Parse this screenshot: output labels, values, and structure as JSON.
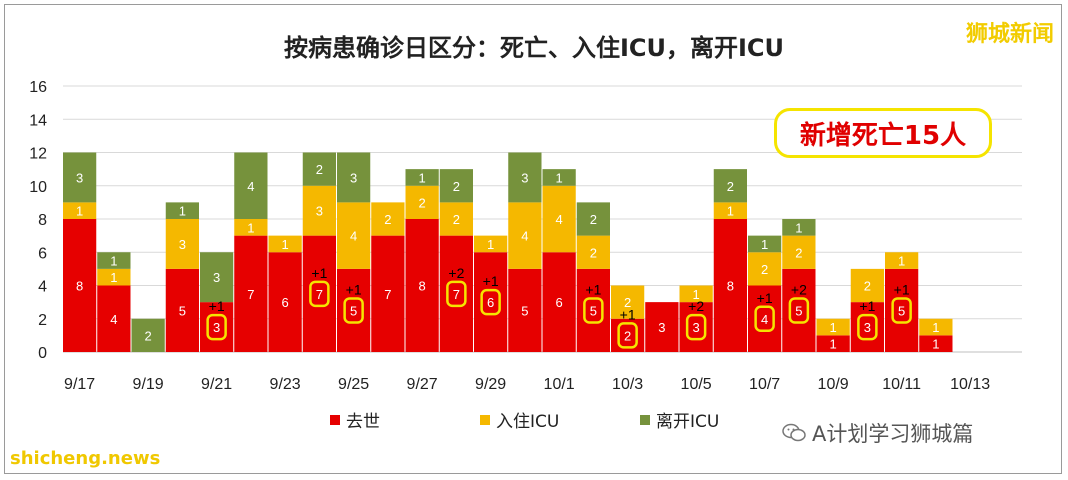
{
  "brand": "狮城新闻",
  "callout": "新增死亡15人",
  "source": "shicheng.news",
  "watermark": "A计划学习狮城篇",
  "colors": {
    "deaths": "#e60000",
    "icu_in": "#f5b800",
    "icu_out": "#76923c",
    "callout_border": "#f5e400"
  },
  "chart_data": {
    "type": "bar",
    "stacked": true,
    "title": "按病患确诊日区分：死亡、入住ICU，离开ICU",
    "categories": [
      "9/17",
      "9/18",
      "9/19",
      "9/20",
      "9/21",
      "9/22",
      "9/23",
      "9/24",
      "9/25",
      "9/26",
      "9/27",
      "9/28",
      "9/29",
      "9/30",
      "10/1",
      "10/2",
      "10/3",
      "10/4",
      "10/5",
      "10/6",
      "10/7",
      "10/8",
      "10/9",
      "10/10",
      "10/11",
      "10/12",
      "10/13"
    ],
    "tick_labels": [
      "9/17",
      "9/19",
      "9/21",
      "9/23",
      "9/25",
      "9/27",
      "9/29",
      "10/1",
      "10/3",
      "10/5",
      "10/7",
      "10/9",
      "10/11",
      "10/13"
    ],
    "ylim": [
      0,
      16
    ],
    "yticks": [
      0,
      2,
      4,
      6,
      8,
      10,
      12,
      14,
      16
    ],
    "grid": true,
    "legend_position": "bottom",
    "series": [
      {
        "name": "去世",
        "color": "#e60000",
        "values": [
          8,
          4,
          0,
          5,
          3,
          7,
          6,
          7,
          5,
          7,
          8,
          7,
          6,
          5,
          6,
          5,
          2,
          3,
          3,
          8,
          4,
          5,
          1,
          3,
          5,
          1,
          0
        ]
      },
      {
        "name": "入住ICU",
        "color": "#f5b800",
        "values": [
          1,
          1,
          0,
          3,
          0,
          1,
          1,
          3,
          4,
          2,
          2,
          2,
          1,
          4,
          4,
          2,
          2,
          0,
          1,
          1,
          2,
          2,
          1,
          2,
          1,
          1,
          0
        ]
      },
      {
        "name": "离开ICU",
        "color": "#76923c",
        "values": [
          3,
          1,
          2,
          1,
          3,
          4,
          0,
          2,
          3,
          0,
          1,
          2,
          0,
          3,
          1,
          2,
          0,
          0,
          0,
          2,
          1,
          1,
          0,
          0,
          0,
          0,
          0
        ]
      }
    ],
    "new_deaths": [
      null,
      null,
      null,
      null,
      "+1",
      null,
      null,
      "+1",
      "+1",
      null,
      null,
      "+2",
      "+1",
      null,
      null,
      "+1",
      "+1",
      null,
      "+2",
      null,
      "+1",
      "+2",
      null,
      "+1",
      "+1",
      null,
      null
    ]
  }
}
